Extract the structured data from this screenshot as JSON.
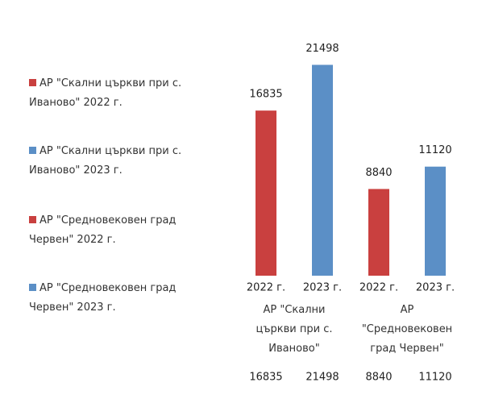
{
  "chart_data": {
    "type": "bar",
    "categories": [
      "2022 г.",
      "2023 г.",
      "2022 г.",
      "2023 г."
    ],
    "groups": [
      "АР \"Скални църкви при с. Иваново\"",
      "АР \"Средновековен град Червен\""
    ],
    "series": [
      {
        "name": "АР \"Скални църкви при с. Иваново\" 2022 г.",
        "color": "#c9403f",
        "values": [
          16835,
          null,
          null,
          null
        ]
      },
      {
        "name": "АР \"Скални църкви при с. Иваново\" 2023 г.",
        "color": "#5b8fc6",
        "values": [
          null,
          21498,
          null,
          null
        ]
      },
      {
        "name": "АР \"Средновековен град Червен\" 2022 г.",
        "color": "#c9403f",
        "values": [
          null,
          null,
          8840,
          null
        ]
      },
      {
        "name": "АР \"Средновековен град Червен\" 2023 г.",
        "color": "#5b8fc6",
        "values": [
          null,
          null,
          null,
          11120
        ]
      }
    ],
    "ylim": [
      0,
      24000
    ],
    "data_labels": true,
    "data_table": true,
    "legend": "left"
  }
}
